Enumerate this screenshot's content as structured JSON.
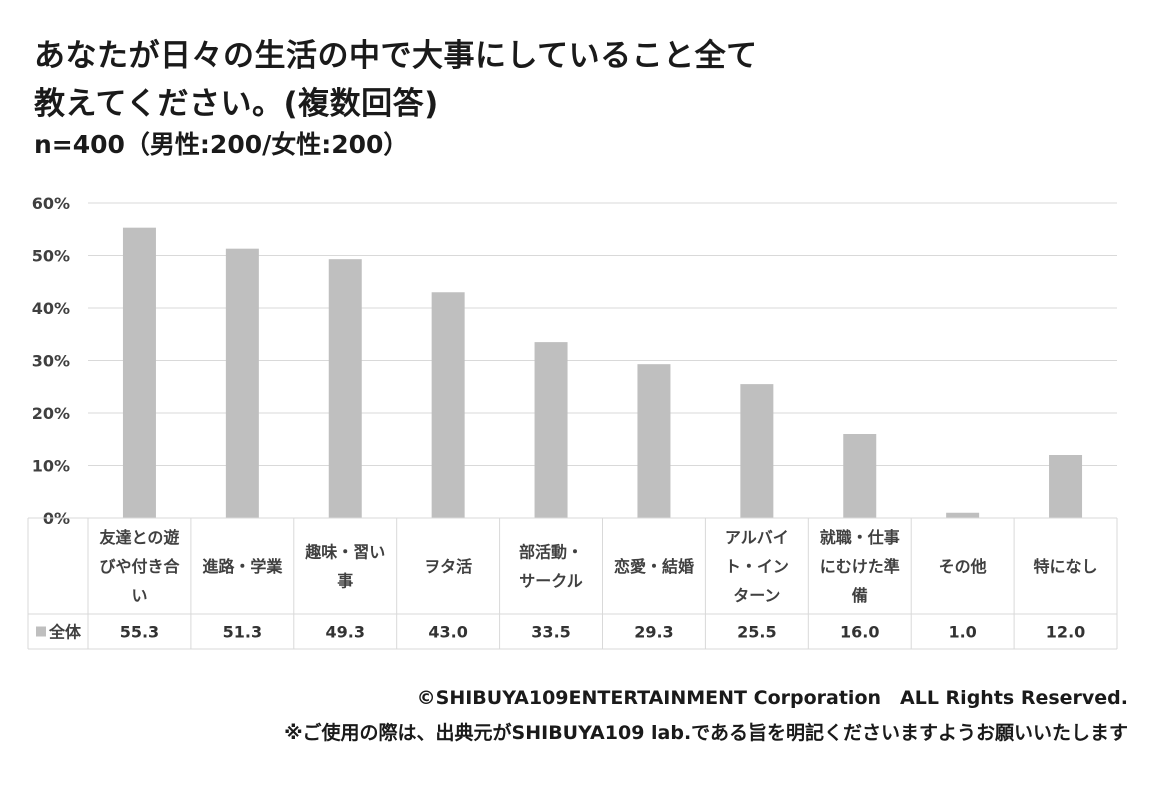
{
  "title_line1": "あなたが日々の生活の中で大事にしていること全て",
  "title_line2": "教えてください。(複数回答)",
  "subtitle": "n=400（男性:200/女性:200）",
  "footer": {
    "copyright": "©SHIBUYA109ENTERTAINMENT Corporation　ALL Rights Reserved.",
    "note": "※ご使用の際は、出典元がSHIBUYA109 lab.である旨を明記くださいますようお願いいたします"
  },
  "colors": {
    "bar": "#bfbfbf",
    "grid": "#d9d9d9",
    "text": "#404040"
  },
  "chart_data": {
    "type": "bar",
    "categories": [
      [
        "友達との遊",
        "びや付き合",
        "い"
      ],
      [
        "進路・学業"
      ],
      [
        "趣味・習い",
        "事"
      ],
      [
        "ヲタ活"
      ],
      [
        "部活動・",
        "サークル"
      ],
      [
        "恋愛・結婚"
      ],
      [
        "アルバイ",
        "ト・イン",
        "ターン"
      ],
      [
        "就職・仕事",
        "にむけた準",
        "備"
      ],
      [
        "その他"
      ],
      [
        "特になし"
      ]
    ],
    "series": [
      {
        "name": "全体",
        "values": [
          55.3,
          51.3,
          49.3,
          43.0,
          33.5,
          29.3,
          25.5,
          16.0,
          1.0,
          12.0
        ],
        "labels": [
          "55.3",
          "51.3",
          "49.3",
          "43.0",
          "33.5",
          "29.3",
          "25.5",
          "16.0",
          "1.0",
          "12.0"
        ]
      }
    ],
    "yticks": [
      "0%",
      "10%",
      "20%",
      "30%",
      "40%",
      "50%",
      "60%"
    ],
    "ylim": [
      0,
      60
    ],
    "grid": true,
    "legend": "data-table"
  }
}
